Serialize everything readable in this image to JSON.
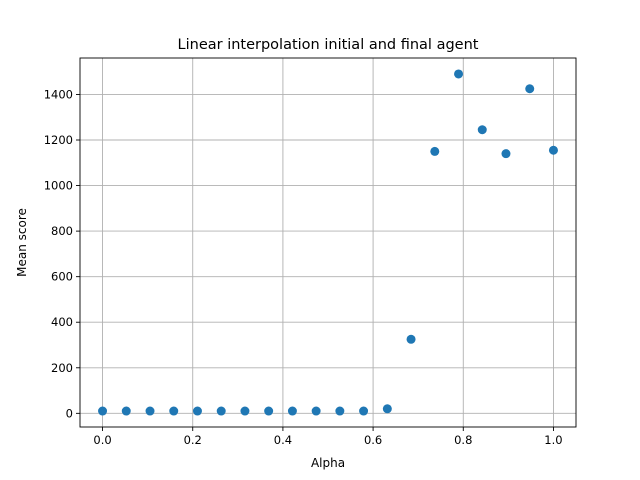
{
  "chart_data": {
    "type": "scatter",
    "title": "Linear interpolation initial and final agent",
    "xlabel": "Alpha",
    "ylabel": "Mean score",
    "xlim": [
      -0.05,
      1.05
    ],
    "ylim": [
      -60,
      1560
    ],
    "xticks": [
      0.0,
      0.2,
      0.4,
      0.6,
      0.8,
      1.0
    ],
    "xtick_labels": [
      "0.0",
      "0.2",
      "0.4",
      "0.6",
      "0.8",
      "1.0"
    ],
    "yticks": [
      0,
      200,
      400,
      600,
      800,
      1000,
      1200,
      1400
    ],
    "ytick_labels": [
      "0",
      "200",
      "400",
      "600",
      "800",
      "1000",
      "1200",
      "1400"
    ],
    "grid": true,
    "marker_color": "#1f77b4",
    "points": [
      {
        "x": 0.0,
        "y": 10
      },
      {
        "x": 0.0526,
        "y": 10
      },
      {
        "x": 0.1053,
        "y": 10
      },
      {
        "x": 0.1579,
        "y": 10
      },
      {
        "x": 0.2105,
        "y": 10
      },
      {
        "x": 0.2632,
        "y": 10
      },
      {
        "x": 0.3158,
        "y": 10
      },
      {
        "x": 0.3684,
        "y": 10
      },
      {
        "x": 0.4211,
        "y": 10
      },
      {
        "x": 0.4737,
        "y": 10
      },
      {
        "x": 0.5263,
        "y": 10
      },
      {
        "x": 0.5789,
        "y": 10
      },
      {
        "x": 0.6316,
        "y": 20
      },
      {
        "x": 0.6842,
        "y": 325
      },
      {
        "x": 0.7368,
        "y": 1150
      },
      {
        "x": 0.7895,
        "y": 1490
      },
      {
        "x": 0.8421,
        "y": 1245
      },
      {
        "x": 0.8947,
        "y": 1140
      },
      {
        "x": 0.9474,
        "y": 1425
      },
      {
        "x": 1.0,
        "y": 1155
      }
    ]
  }
}
